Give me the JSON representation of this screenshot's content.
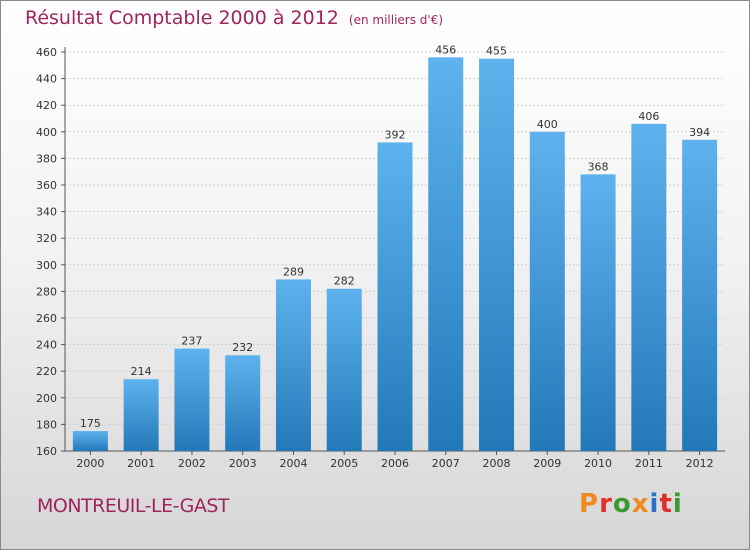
{
  "header": {
    "title": "Résultat Comptable 2000 à 2012",
    "unit": "(en milliers d'€)"
  },
  "footer": {
    "commune": "MONTREUIL-LE-GAST",
    "logo": "Proxiti",
    "logo_colors": [
      "#f08a1e",
      "#e0302a",
      "#3a9a2f",
      "#f08a1e",
      "#2a6fc9",
      "#e0302a",
      "#3a9a2f"
    ]
  },
  "colors": {
    "bar_top": "#5eb3ee",
    "bar_bottom": "#2379b8",
    "grid": "#cfcfcf",
    "axis": "#555555",
    "label": "#333333",
    "title": "#a0245e"
  },
  "chart_data": {
    "type": "bar",
    "categories": [
      "2000",
      "2001",
      "2002",
      "2003",
      "2004",
      "2005",
      "2006",
      "2007",
      "2008",
      "2009",
      "2010",
      "2011",
      "2012"
    ],
    "values": [
      175,
      214,
      237,
      232,
      289,
      282,
      392,
      456,
      455,
      400,
      368,
      406,
      394
    ],
    "ylim": [
      160,
      460
    ],
    "yticks": [
      160,
      180,
      200,
      220,
      240,
      260,
      280,
      300,
      320,
      340,
      360,
      380,
      400,
      420,
      440,
      460
    ],
    "grid": true,
    "data_labels": true
  }
}
